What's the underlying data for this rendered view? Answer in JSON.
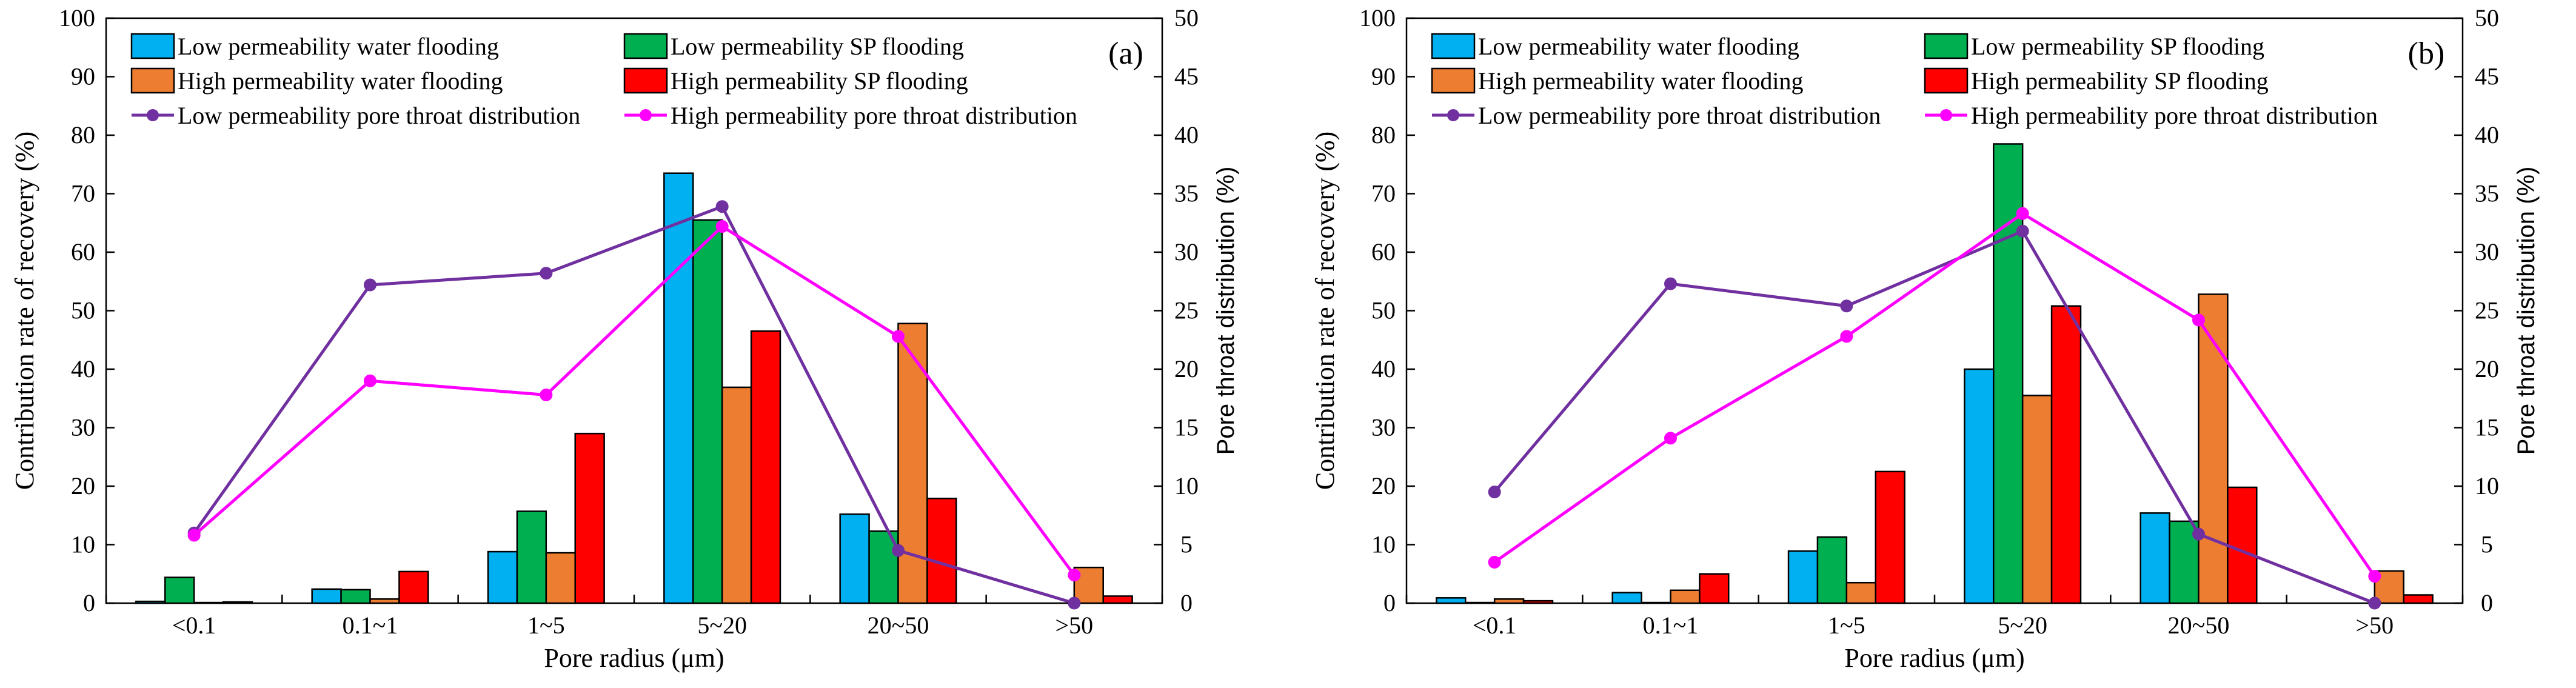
{
  "chart_data": [
    {
      "type": "bar",
      "panel_label": "(a)",
      "categories": [
        "<0.1",
        "0.1~1",
        "1~5",
        "5~20",
        "20~50",
        ">50"
      ],
      "xlabel": "Pore radius (μm)",
      "ylabel": "Contribution rate of recovery (%)",
      "y2label": "Pore throat distribution (%)",
      "ylim": [
        0,
        100
      ],
      "y2lim": [
        0,
        50
      ],
      "yticks": [
        0,
        10,
        20,
        30,
        40,
        50,
        60,
        70,
        80,
        90,
        100
      ],
      "y2ticks": [
        0,
        5,
        10,
        15,
        20,
        25,
        30,
        35,
        40,
        45,
        50
      ],
      "bar_series": [
        {
          "name": "Low permeability water flooding",
          "color": "#00B0F0",
          "values": [
            0.3,
            2.4,
            8.8,
            73.5,
            15.2,
            0
          ]
        },
        {
          "name": "Low permeability SP flooding",
          "color": "#00B050",
          "values": [
            4.4,
            2.3,
            15.7,
            65.5,
            12.3,
            0
          ]
        },
        {
          "name": "High permeability water flooding",
          "color": "#ED7D31",
          "values": [
            0.1,
            0.7,
            8.6,
            36.9,
            47.8,
            6.1
          ]
        },
        {
          "name": "High permeability SP flooding",
          "color": "#FF0000",
          "values": [
            0.2,
            5.4,
            29.0,
            46.5,
            17.9,
            1.2
          ]
        }
      ],
      "line_series": [
        {
          "name": "Low permeability pore throat distribution",
          "color": "#7030A0",
          "values": [
            6.0,
            27.2,
            28.2,
            33.9,
            4.5,
            0.0
          ]
        },
        {
          "name": "High permeability pore throat distribution",
          "color": "#FF00FF",
          "values": [
            5.8,
            19.0,
            17.8,
            32.2,
            22.8,
            2.4
          ]
        }
      ]
    },
    {
      "type": "bar",
      "panel_label": "(b)",
      "categories": [
        "<0.1",
        "0.1~1",
        "1~5",
        "5~20",
        "20~50",
        ">50"
      ],
      "xlabel": "Pore radius (μm)",
      "ylabel": "Contribution rate of recovery (%)",
      "y2label": "Pore throat distribution (%)",
      "ylim": [
        0,
        100
      ],
      "y2lim": [
        0,
        50
      ],
      "yticks": [
        0,
        10,
        20,
        30,
        40,
        50,
        60,
        70,
        80,
        90,
        100
      ],
      "y2ticks": [
        0,
        5,
        10,
        15,
        20,
        25,
        30,
        35,
        40,
        45,
        50
      ],
      "bar_series": [
        {
          "name": "Low permeability water flooding",
          "color": "#00B0F0",
          "values": [
            0.9,
            1.8,
            8.9,
            40.0,
            15.4,
            0
          ]
        },
        {
          "name": "Low permeability SP flooding",
          "color": "#00B050",
          "values": [
            0.1,
            0.1,
            11.3,
            78.5,
            14.0,
            0
          ]
        },
        {
          "name": "High permeability water flooding",
          "color": "#ED7D31",
          "values": [
            0.7,
            2.2,
            3.5,
            35.5,
            52.8,
            5.5
          ]
        },
        {
          "name": "High permeability SP flooding",
          "color": "#FF0000",
          "values": [
            0.4,
            5.0,
            22.5,
            50.8,
            19.8,
            1.4
          ]
        }
      ],
      "line_series": [
        {
          "name": "Low permeability pore throat distribution",
          "color": "#7030A0",
          "values": [
            9.5,
            27.3,
            25.4,
            31.8,
            5.9,
            0.0
          ]
        },
        {
          "name": "High permeability pore throat distribution",
          "color": "#FF00FF",
          "values": [
            3.5,
            14.1,
            22.8,
            33.3,
            24.2,
            2.3
          ]
        }
      ]
    }
  ]
}
